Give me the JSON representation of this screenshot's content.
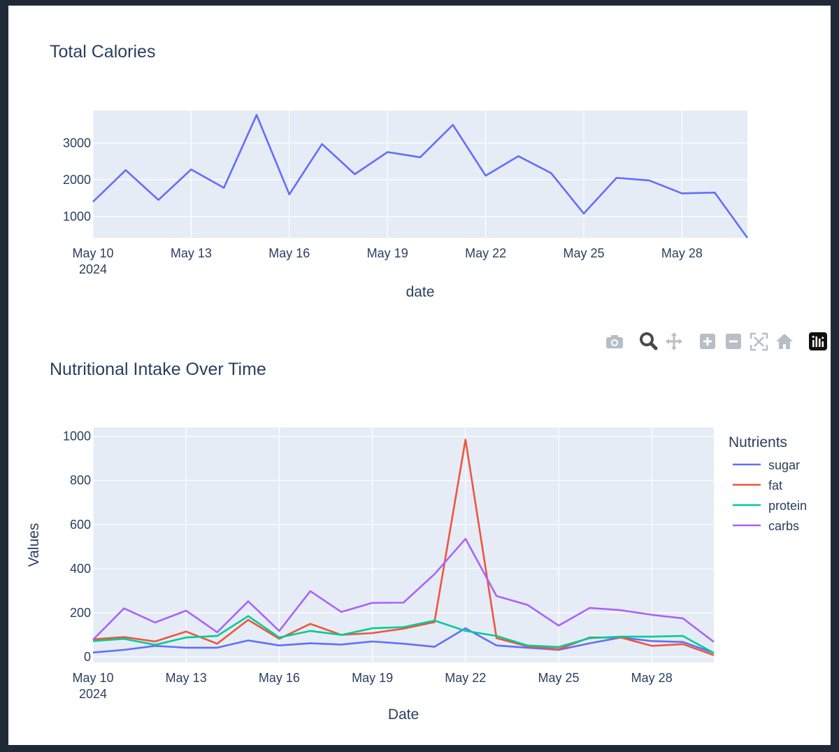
{
  "chart_data": [
    {
      "type": "line",
      "title": "Total Calories",
      "xlabel": "date",
      "ylabel": "",
      "x": [
        "2024-05-10",
        "2024-05-11",
        "2024-05-12",
        "2024-05-13",
        "2024-05-14",
        "2024-05-15",
        "2024-05-16",
        "2024-05-17",
        "2024-05-18",
        "2024-05-19",
        "2024-05-20",
        "2024-05-21",
        "2024-05-22",
        "2024-05-23",
        "2024-05-24",
        "2024-05-25",
        "2024-05-26",
        "2024-05-27",
        "2024-05-28",
        "2024-05-29",
        "2024-05-30"
      ],
      "x_tick_labels": [
        "May 10",
        "May 13",
        "May 16",
        "May 19",
        "May 22",
        "May 25",
        "May 28"
      ],
      "x_tick_days": [
        0,
        3,
        6,
        9,
        12,
        15,
        18
      ],
      "x_tick_sublabel": "2024",
      "y_ticks": [
        1000,
        2000,
        3000
      ],
      "ylim": [
        420,
        3880
      ],
      "series": [
        {
          "name": "calories",
          "color": "#636efa",
          "values": [
            1400,
            2260,
            1450,
            2280,
            1780,
            3760,
            1600,
            2970,
            2150,
            2750,
            2610,
            3490,
            2110,
            2640,
            2180,
            1080,
            2050,
            1980,
            1630,
            1650,
            420
          ]
        }
      ]
    },
    {
      "type": "line",
      "title": "Nutritional Intake Over Time",
      "xlabel": "Date",
      "ylabel": "Values",
      "x": [
        "2024-05-10",
        "2024-05-11",
        "2024-05-12",
        "2024-05-13",
        "2024-05-14",
        "2024-05-15",
        "2024-05-16",
        "2024-05-17",
        "2024-05-18",
        "2024-05-19",
        "2024-05-20",
        "2024-05-21",
        "2024-05-22",
        "2024-05-23",
        "2024-05-24",
        "2024-05-25",
        "2024-05-26",
        "2024-05-27",
        "2024-05-28",
        "2024-05-29",
        "2024-05-30"
      ],
      "x_tick_labels": [
        "May 10",
        "May 13",
        "May 16",
        "May 19",
        "May 22",
        "May 25",
        "May 28"
      ],
      "x_tick_days": [
        0,
        3,
        6,
        9,
        12,
        15,
        18
      ],
      "x_tick_sublabel": "2024",
      "y_ticks": [
        0,
        200,
        400,
        600,
        800,
        1000
      ],
      "ylim": [
        -25,
        1040
      ],
      "legend_title": "Nutrients",
      "legend_position": "right",
      "series": [
        {
          "name": "sugar",
          "color": "#636efa",
          "values": [
            20,
            32,
            50,
            42,
            42,
            75,
            52,
            62,
            56,
            70,
            60,
            46,
            130,
            52,
            42,
            32,
            62,
            88,
            72,
            68,
            18
          ]
        },
        {
          "name": "fat",
          "color": "#ef553b",
          "values": [
            80,
            90,
            70,
            115,
            60,
            168,
            82,
            150,
            100,
            108,
            128,
            158,
            985,
            85,
            48,
            35,
            88,
            88,
            50,
            58,
            8
          ]
        },
        {
          "name": "protein",
          "color": "#00cc96",
          "values": [
            72,
            82,
            55,
            88,
            95,
            185,
            88,
            118,
            100,
            130,
            135,
            165,
            118,
            95,
            52,
            45,
            85,
            92,
            92,
            95,
            18
          ]
        },
        {
          "name": "carbs",
          "color": "#ab63fa",
          "values": [
            78,
            220,
            156,
            210,
            112,
            252,
            118,
            298,
            204,
            245,
            246,
            375,
            535,
            276,
            236,
            142,
            222,
            212,
            191,
            175,
            68
          ]
        }
      ]
    }
  ],
  "modebar": [
    {
      "name": "camera-icon",
      "title": "Download plot as a png"
    },
    {
      "name": "zoom-icon",
      "title": "Zoom"
    },
    {
      "name": "pan-icon",
      "title": "Pan"
    },
    {
      "name": "zoom-in-icon",
      "title": "Zoom in"
    },
    {
      "name": "zoom-out-icon",
      "title": "Zoom out"
    },
    {
      "name": "autoscale-icon",
      "title": "Autoscale"
    },
    {
      "name": "reset-axes-icon",
      "title": "Reset axes"
    },
    {
      "name": "plotly-logo-icon",
      "title": "Produced with Plotly"
    }
  ],
  "theme": {
    "plot_bg": "#e5ecf6",
    "grid": "#ffffff",
    "text": "#2a3f5f"
  }
}
